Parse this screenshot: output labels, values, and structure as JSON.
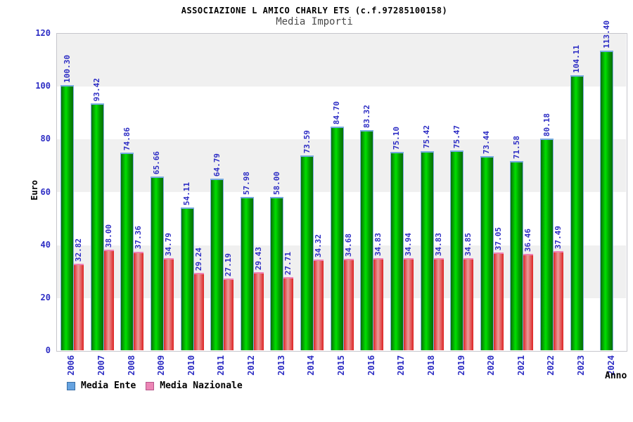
{
  "header": {
    "title": "ASSOCIAZIONE L AMICO CHARLY ETS (c.f.97285100158)",
    "subtitle": "Media Importi"
  },
  "chart_data": {
    "type": "bar",
    "title": "ASSOCIAZIONE L AMICO CHARLY ETS (c.f.97285100158)",
    "subtitle": "Media Importi",
    "xlabel": "Anno",
    "ylabel": "Euro",
    "ylim": [
      0,
      120
    ],
    "yticks": [
      0,
      20,
      40,
      60,
      80,
      100,
      120
    ],
    "grid": "alternating-horizontal-bands",
    "legend_position": "bottom-left",
    "value_label_format": "2-decimals-rotated-90",
    "categories": [
      "2006",
      "2007",
      "2008",
      "2009",
      "2010",
      "2011",
      "2012",
      "2013",
      "2014",
      "2015",
      "2016",
      "2017",
      "2018",
      "2019",
      "2020",
      "2021",
      "2022",
      "2023",
      "2024"
    ],
    "series": [
      {
        "name": "Media Ente",
        "bar_color": "green-gradient",
        "values": [
          100.3,
          93.42,
          74.86,
          65.66,
          54.11,
          64.79,
          57.98,
          58.0,
          73.59,
          84.7,
          83.32,
          75.1,
          75.42,
          75.47,
          73.44,
          71.58,
          80.18,
          104.11,
          113.4
        ]
      },
      {
        "name": "Media Nazionale",
        "bar_color": "red-gradient",
        "values": [
          32.82,
          38.0,
          37.36,
          34.79,
          29.24,
          27.19,
          29.43,
          27.71,
          34.32,
          34.68,
          34.83,
          34.94,
          34.83,
          34.85,
          37.05,
          36.46,
          37.49,
          null,
          null
        ]
      }
    ]
  },
  "colors": {
    "bar_green_dark": "#0a6e0a",
    "bar_green_bright": "#00e000",
    "bar_green_side": "#7fb2e4",
    "bar_green_cap": "#74aadf",
    "bar_red_dark": "#dd2424",
    "bar_red_light": "#e99a9a",
    "bar_red_cap": "#ef82b4",
    "legend_ente_fill": "#66a3e0",
    "legend_ente_border": "#3a6ea5",
    "legend_nazionale_fill": "#ec85b5",
    "legend_nazionale_border": "#b5568a",
    "label_blue": "#2d2dc4",
    "band_gray": "#f0f0f0",
    "band_white": "#ffffff",
    "plot_border": "#c6c6cc"
  }
}
